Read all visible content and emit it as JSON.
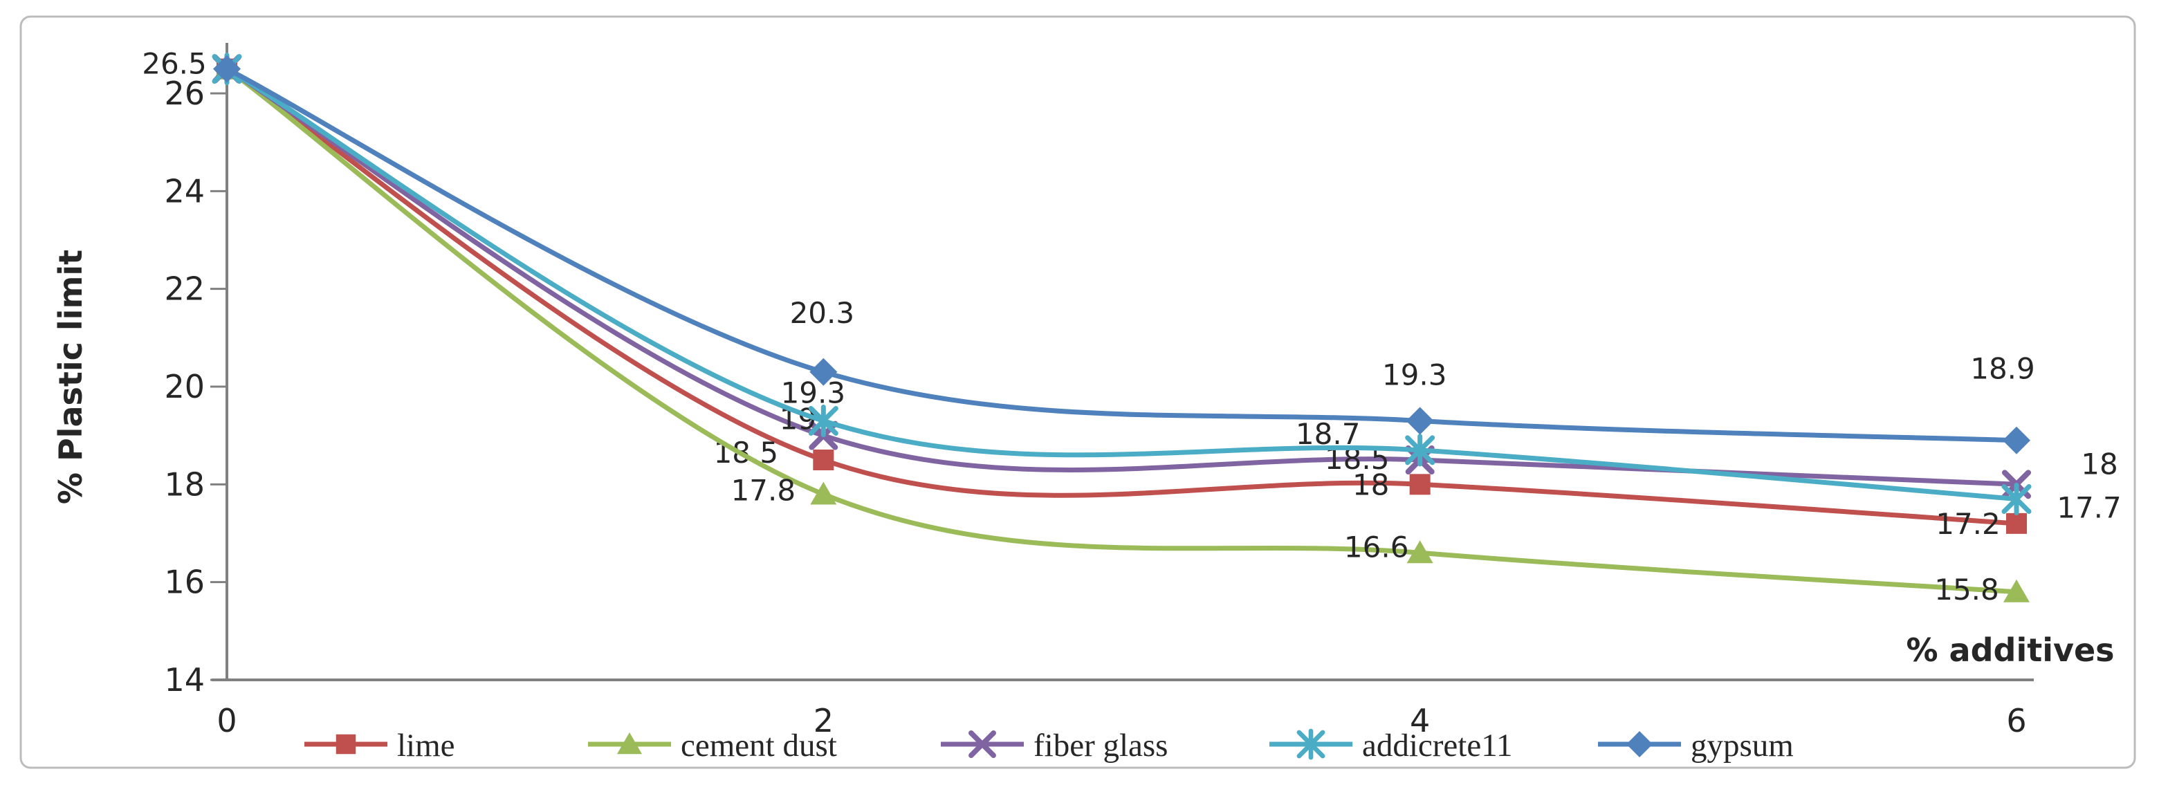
{
  "figure": {
    "background": "#ffffff",
    "border_color": "#bcbcbc"
  },
  "chart_data": {
    "type": "line",
    "line_style": "smooth",
    "title": "",
    "xlabel": "% additives",
    "ylabel": "% Plastic limit",
    "x": [
      0,
      2,
      4,
      6
    ],
    "xtick_labels": [
      "0",
      "2",
      "4",
      "6"
    ],
    "yticks": [
      26,
      24,
      22,
      20,
      18,
      16,
      14
    ],
    "ytick_labels": [
      "26",
      "24",
      "22",
      "20",
      "18",
      "16",
      "14"
    ],
    "xlim": [
      0,
      6
    ],
    "ylim": [
      14,
      27
    ],
    "grid": false,
    "legend_position": "bottom",
    "axis_color": "#808080",
    "series": [
      {
        "name": "lime",
        "color": "#C0504D",
        "marker": "square",
        "values": [
          26.5,
          18.5,
          18.0,
          17.2
        ],
        "labels": [
          "26.5",
          "18.5",
          "18",
          "17.2"
        ]
      },
      {
        "name": "cement dust",
        "color": "#9BBB59",
        "marker": "triangle",
        "values": [
          26.5,
          17.8,
          16.6,
          15.8
        ],
        "labels": [
          "26.5",
          "17.8",
          "16.6",
          "15.8"
        ]
      },
      {
        "name": "fiber glass",
        "color": "#8064A2",
        "marker": "x",
        "values": [
          26.5,
          19.0,
          18.5,
          18.0
        ],
        "labels": [
          "26.5",
          "19",
          "18.5",
          "18"
        ]
      },
      {
        "name": "addicrete11",
        "color": "#4BACC6",
        "marker": "asterisk",
        "values": [
          26.5,
          19.3,
          18.7,
          17.7
        ],
        "labels": [
          "26.5",
          "19.3",
          "18.7",
          "17.7"
        ]
      },
      {
        "name": "gypsum",
        "color": "#4F81BD",
        "marker": "diamond",
        "values": [
          26.5,
          20.3,
          19.3,
          18.9
        ],
        "labels": [
          "26.5",
          "20.3",
          "19.3",
          "18.9"
        ]
      }
    ]
  }
}
